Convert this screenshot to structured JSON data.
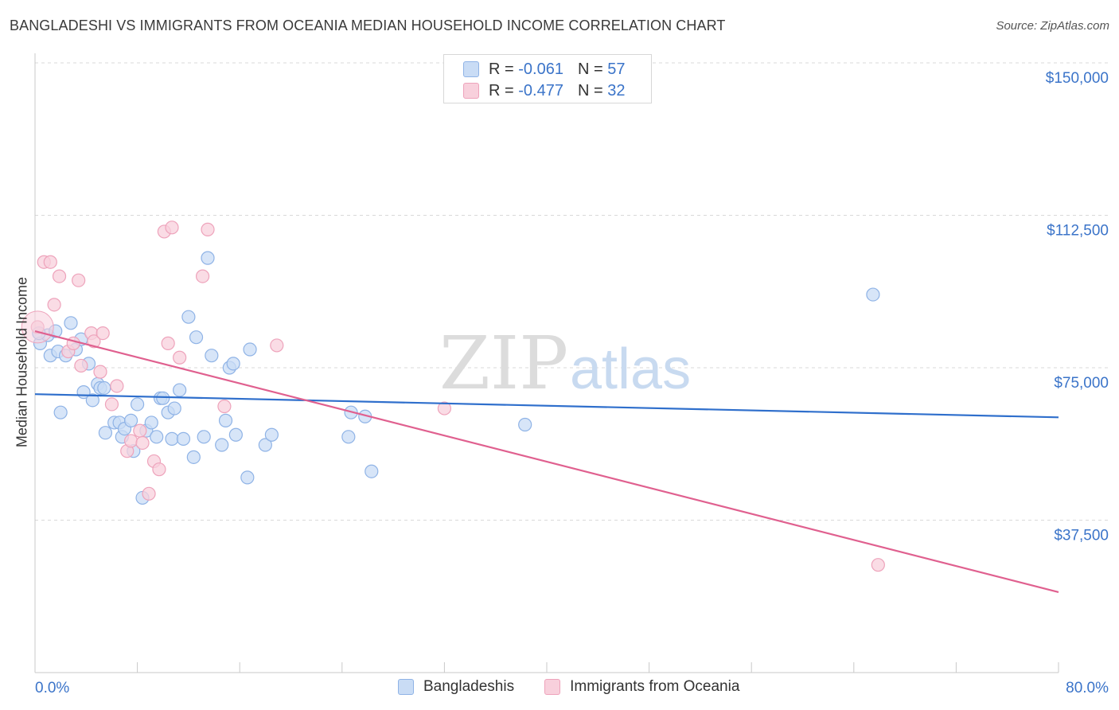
{
  "title": "BANGLADESHI VS IMMIGRANTS FROM OCEANIA MEDIAN HOUSEHOLD INCOME CORRELATION CHART",
  "source": "Source: ZipAtlas.com",
  "watermark": {
    "zip": "ZIP",
    "atlas": "atlas"
  },
  "legend_top": [
    {
      "r_label": "R =",
      "r_value": "-0.061",
      "n_label": "N =",
      "n_value": "57",
      "color": "#9dbfee"
    },
    {
      "r_label": "R =",
      "r_value": "-0.477",
      "n_label": "N =",
      "n_value": "32",
      "color": "#f4afc4"
    }
  ],
  "colors": {
    "blue_fill": "#c9dcf5",
    "blue_stroke": "#8fb3e6",
    "blue_line": "#2f6fcc",
    "pink_fill": "#f8d0dc",
    "pink_stroke": "#eea3bb",
    "pink_line": "#e0608f",
    "grid": "#d9d9d9",
    "tick_text": "#3b74c9"
  },
  "chart_data": {
    "type": "scatter",
    "title": "BANGLADESHI VS IMMIGRANTS FROM OCEANIA MEDIAN HOUSEHOLD INCOME CORRELATION CHART",
    "xlabel": "",
    "ylabel": "Median Household Income",
    "xlim": [
      0,
      80
    ],
    "ylim": [
      0,
      150000
    ],
    "x_tick_labels": [
      "0.0%",
      "80.0%"
    ],
    "y_ticks": [
      37500,
      75000,
      112500,
      150000
    ],
    "y_tick_labels": [
      "$37,500",
      "$75,000",
      "$112,500",
      "$150,000"
    ],
    "grid": "horizontal dashed",
    "legend_position": "top-center and bottom",
    "series": [
      {
        "name": "Bangladeshis",
        "color": "#9dbfee",
        "points": [
          [
            0.4,
            81000
          ],
          [
            1.0,
            83000
          ],
          [
            1.2,
            78000
          ],
          [
            1.6,
            84000
          ],
          [
            1.8,
            79000
          ],
          [
            2.0,
            64000
          ],
          [
            2.4,
            78000
          ],
          [
            2.8,
            86000
          ],
          [
            3.2,
            79500
          ],
          [
            3.6,
            82000
          ],
          [
            3.8,
            69000
          ],
          [
            4.2,
            76000
          ],
          [
            4.5,
            67000
          ],
          [
            4.9,
            71000
          ],
          [
            5.1,
            70000
          ],
          [
            5.4,
            70000
          ],
          [
            5.5,
            59000
          ],
          [
            6.2,
            61500
          ],
          [
            6.6,
            61500
          ],
          [
            6.8,
            58000
          ],
          [
            7.0,
            60000
          ],
          [
            7.5,
            62000
          ],
          [
            7.7,
            54500
          ],
          [
            8.0,
            66000
          ],
          [
            8.4,
            43000
          ],
          [
            8.7,
            59500
          ],
          [
            9.1,
            61500
          ],
          [
            9.5,
            58000
          ],
          [
            9.8,
            67500
          ],
          [
            10.0,
            67500
          ],
          [
            10.4,
            64000
          ],
          [
            10.7,
            57500
          ],
          [
            10.9,
            65000
          ],
          [
            11.3,
            69500
          ],
          [
            11.6,
            57500
          ],
          [
            12.0,
            87500
          ],
          [
            12.4,
            53000
          ],
          [
            12.6,
            82500
          ],
          [
            13.2,
            58000
          ],
          [
            13.5,
            102000
          ],
          [
            13.8,
            78000
          ],
          [
            14.6,
            56000
          ],
          [
            14.9,
            62000
          ],
          [
            15.2,
            75000
          ],
          [
            15.5,
            76000
          ],
          [
            15.7,
            58500
          ],
          [
            16.6,
            48000
          ],
          [
            16.8,
            79500
          ],
          [
            18.0,
            56000
          ],
          [
            18.5,
            58500
          ],
          [
            24.5,
            58000
          ],
          [
            24.7,
            64000
          ],
          [
            25.8,
            63000
          ],
          [
            26.3,
            49500
          ],
          [
            38.3,
            61000
          ],
          [
            65.5,
            93000
          ],
          [
            0.3,
            83500
          ]
        ]
      },
      {
        "name": "Immigrants from Oceania",
        "color": "#f4afc4",
        "points": [
          [
            0.2,
            85000
          ],
          [
            0.7,
            101000
          ],
          [
            1.2,
            101000
          ],
          [
            1.5,
            90500
          ],
          [
            1.9,
            97500
          ],
          [
            2.6,
            79000
          ],
          [
            3.0,
            81000
          ],
          [
            3.4,
            96500
          ],
          [
            3.6,
            75500
          ],
          [
            4.4,
            83500
          ],
          [
            4.6,
            81500
          ],
          [
            5.1,
            74000
          ],
          [
            5.3,
            83500
          ],
          [
            6.0,
            66000
          ],
          [
            6.4,
            70500
          ],
          [
            7.2,
            54500
          ],
          [
            7.5,
            57000
          ],
          [
            8.2,
            59500
          ],
          [
            8.4,
            56500
          ],
          [
            8.9,
            44000
          ],
          [
            9.3,
            52000
          ],
          [
            9.7,
            50000
          ],
          [
            10.1,
            108500
          ],
          [
            10.4,
            81000
          ],
          [
            10.7,
            109500
          ],
          [
            11.3,
            77500
          ],
          [
            13.1,
            97500
          ],
          [
            13.5,
            109000
          ],
          [
            14.8,
            65500
          ],
          [
            18.9,
            80500
          ],
          [
            32.0,
            65000
          ],
          [
            65.9,
            26500
          ]
        ]
      }
    ],
    "trend_lines": [
      {
        "series": "Bangladeshis",
        "x": [
          0,
          80
        ],
        "y": [
          68500,
          62800
        ]
      },
      {
        "series": "Immigrants from Oceania",
        "x": [
          0,
          80
        ],
        "y": [
          84000,
          19800
        ]
      }
    ]
  }
}
